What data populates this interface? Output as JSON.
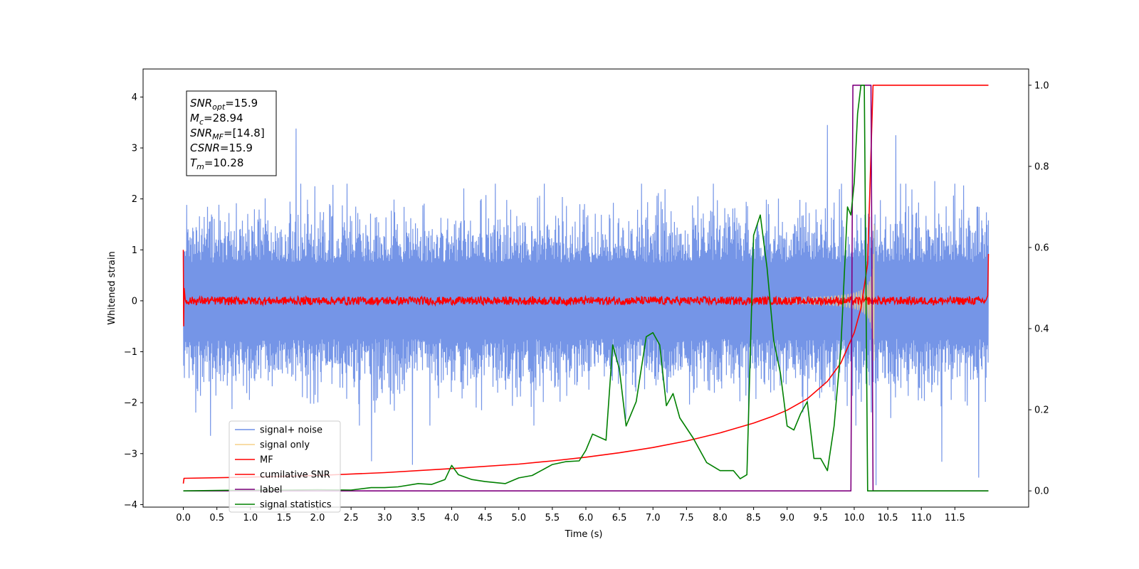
{
  "chart_data": {
    "type": "line",
    "xlabel": "Time (s)",
    "ylabel_left": "Whitened strain",
    "ylabel_right": "",
    "xlim": [
      -0.6,
      12.6
    ],
    "ylim_left": [
      -4.05,
      4.55
    ],
    "ylim_right": [
      -0.04,
      1.04
    ],
    "x_ticks": [
      0.0,
      0.5,
      1.0,
      1.5,
      2.0,
      2.5,
      3.0,
      3.5,
      4.0,
      4.5,
      5.0,
      5.5,
      6.0,
      6.5,
      7.0,
      7.5,
      8.0,
      8.5,
      9.0,
      9.5,
      10.0,
      10.5,
      11.0,
      11.5
    ],
    "x_tick_labels": [
      "0.0",
      "0.5",
      "1.0",
      "1.5",
      "2.0",
      "2.5",
      "3.0",
      "3.5",
      "4.0",
      "4.5",
      "5.0",
      "5.5",
      "6.0",
      "6.5",
      "7.0",
      "7.5",
      "8.0",
      "8.5",
      "9.0",
      "9.5",
      "10.0",
      "10.5",
      "11.0",
      "11.5"
    ],
    "y_ticks_left": [
      -4,
      -3,
      -2,
      -1,
      0,
      1,
      2,
      3,
      4
    ],
    "y_tick_labels_left": [
      "−4",
      "−3",
      "−2",
      "−1",
      "0",
      "1",
      "2",
      "3",
      "4"
    ],
    "y_ticks_right": [
      0.0,
      0.2,
      0.4,
      0.6,
      0.8,
      1.0
    ],
    "y_tick_labels_right": [
      "0.0",
      "0.2",
      "0.4",
      "0.6",
      "0.8",
      "1.0"
    ],
    "grid": false,
    "legend_position": "lower-left",
    "legend": [
      {
        "label": "signal+ noise",
        "color": "#6e8fe6"
      },
      {
        "label": "signal only",
        "color": "#f5d08a"
      },
      {
        "label": "MF",
        "color": "#ff0000"
      },
      {
        "label": "cumilative SNR",
        "color": "#ff0000"
      },
      {
        "label": "label",
        "color": "#800080"
      },
      {
        "label": "signal statistics",
        "color": "#008000"
      }
    ],
    "annotation_lines": [
      {
        "base": "SNR",
        "sub": "opt",
        "rest": "=15.9"
      },
      {
        "base": "M",
        "sub": "c",
        "rest": "=28.94"
      },
      {
        "base": "SNR",
        "sub": "MF",
        "rest": "=[14.8]"
      },
      {
        "base": "CSNR",
        "sub": "",
        "rest": "=15.9"
      },
      {
        "base": "T",
        "sub": "m",
        "rest": "=10.28"
      }
    ],
    "series": [
      {
        "name": "signal+ noise",
        "axis": "left",
        "color": "#6e8fe6",
        "x_range": [
          0.0,
          12.0
        ],
        "envelope_upper_typical": 1.8,
        "envelope_lower_typical": -2.0,
        "peak_values": [
          [
            1.68,
            3.38
          ],
          [
            7.9,
            2.3
          ],
          [
            9.6,
            3.45
          ],
          [
            10.62,
            3.25
          ],
          [
            11.2,
            2.35
          ],
          [
            11.5,
            2.3
          ]
        ],
        "trough_values": [
          [
            0.41,
            -2.65
          ],
          [
            2.81,
            -3.15
          ],
          [
            3.41,
            -3.22
          ],
          [
            8.43,
            -2.45
          ],
          [
            11.3,
            -3.16
          ],
          [
            11.86,
            -3.47
          ],
          [
            10.33,
            -3.62
          ]
        ]
      },
      {
        "name": "signal only",
        "axis": "left",
        "color": "#f5d08a",
        "x_range": [
          8.9,
          10.3
        ],
        "amplitude_at_10_2": 1.45
      },
      {
        "name": "MF",
        "axis": "left",
        "color": "#ff0000",
        "x_range": [
          0.0,
          12.0
        ],
        "baseline": 0.0,
        "jitter": 0.1,
        "start_value": 1.0,
        "end_value": 0.92
      },
      {
        "name": "cumilative SNR",
        "axis": "right",
        "color": "#ff0000",
        "x": [
          0.0,
          0.01,
          1.0,
          2.0,
          3.0,
          4.0,
          5.0,
          5.5,
          6.0,
          6.5,
          7.0,
          7.5,
          8.0,
          8.5,
          8.8,
          9.0,
          9.3,
          9.6,
          9.8,
          10.0,
          10.1,
          10.2,
          10.28,
          12.0
        ],
        "values": [
          0.018,
          0.031,
          0.034,
          0.038,
          0.045,
          0.055,
          0.066,
          0.074,
          0.083,
          0.094,
          0.107,
          0.123,
          0.143,
          0.167,
          0.185,
          0.199,
          0.227,
          0.27,
          0.315,
          0.39,
          0.45,
          0.56,
          1.0,
          1.0
        ]
      },
      {
        "name": "label",
        "axis": "right",
        "color": "#800080",
        "x": [
          0.0,
          9.95,
          9.98,
          10.25,
          10.28,
          12.0
        ],
        "values": [
          0.0,
          0.0,
          1.0,
          1.0,
          0.0,
          0.0
        ]
      },
      {
        "name": "signal statistics",
        "axis": "right",
        "color": "#008000",
        "x": [
          0.0,
          0.5,
          1.0,
          1.5,
          2.0,
          2.5,
          2.8,
          3.0,
          3.2,
          3.5,
          3.7,
          3.9,
          4.0,
          4.1,
          4.3,
          4.5,
          4.8,
          5.0,
          5.2,
          5.5,
          5.7,
          5.9,
          6.0,
          6.1,
          6.3,
          6.4,
          6.5,
          6.6,
          6.75,
          6.9,
          7.0,
          7.1,
          7.2,
          7.3,
          7.4,
          7.6,
          7.8,
          8.0,
          8.2,
          8.3,
          8.4,
          8.5,
          8.6,
          8.7,
          8.8,
          8.9,
          9.0,
          9.1,
          9.2,
          9.3,
          9.4,
          9.5,
          9.6,
          9.7,
          9.8,
          9.9,
          9.95,
          10.0,
          10.05,
          10.1,
          10.15,
          10.2,
          10.25,
          10.3,
          10.35,
          10.5,
          11.0,
          11.5,
          12.0
        ],
        "values": [
          0.0,
          0.001,
          0.002,
          0.002,
          0.003,
          0.002,
          0.008,
          0.008,
          0.01,
          0.018,
          0.016,
          0.028,
          0.063,
          0.04,
          0.028,
          0.023,
          0.018,
          0.032,
          0.038,
          0.065,
          0.072,
          0.074,
          0.1,
          0.14,
          0.125,
          0.36,
          0.3,
          0.16,
          0.22,
          0.38,
          0.39,
          0.36,
          0.21,
          0.24,
          0.18,
          0.13,
          0.07,
          0.05,
          0.05,
          0.03,
          0.04,
          0.63,
          0.68,
          0.55,
          0.37,
          0.29,
          0.16,
          0.15,
          0.19,
          0.22,
          0.08,
          0.08,
          0.05,
          0.16,
          0.35,
          0.7,
          0.68,
          0.76,
          0.93,
          1.0,
          1.0,
          0.0,
          0.0,
          0.0,
          0.0,
          0.0,
          0.0,
          0.0,
          0.0
        ]
      }
    ]
  }
}
